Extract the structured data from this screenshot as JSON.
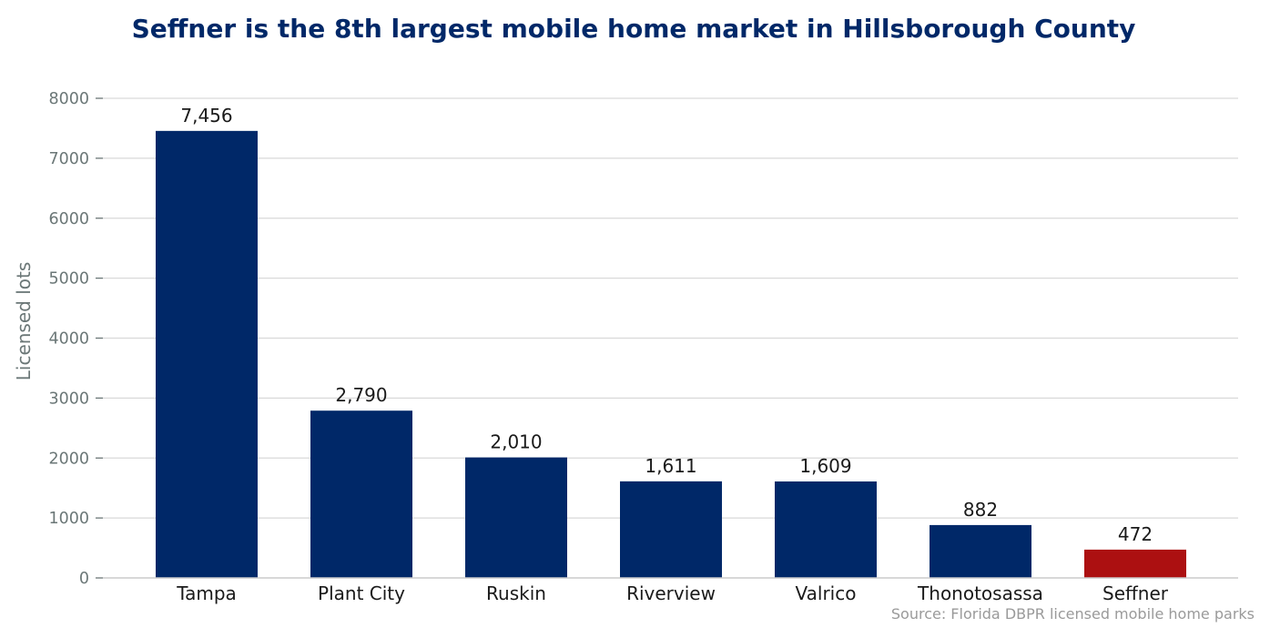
{
  "chart_data": {
    "type": "bar",
    "title": "Seffner is the 8th largest mobile home market in Hillsborough County",
    "ylabel": "Licensed lots",
    "xlabel": "",
    "categories": [
      "Tampa",
      "Plant City",
      "Ruskin",
      "Riverview",
      "Valrico",
      "Thonotosassa",
      "Seffner"
    ],
    "values": [
      7456,
      2790,
      2010,
      1611,
      1609,
      882,
      472
    ],
    "data_labels": [
      "7,456",
      "2,790",
      "2,010",
      "1,611",
      "1,609",
      "882",
      "472"
    ],
    "highlight_category": "Seffner",
    "ylim": [
      0,
      8000
    ],
    "yticks": [
      0,
      1000,
      2000,
      3000,
      4000,
      5000,
      6000,
      7000,
      8000
    ],
    "grid": "horizontal",
    "legend": "none",
    "source": "Source: Florida DBPR licensed mobile home parks"
  },
  "colors": {
    "bar": "#002868",
    "highlight": "#ac1011",
    "title": "#002868",
    "tick_text": "#6b7777",
    "category_text": "#1a1a1a",
    "label_text": "#1a1a1a",
    "grid": "#d9d9d9",
    "axis": "#cccccc",
    "source_text": "#9a9a9a"
  }
}
